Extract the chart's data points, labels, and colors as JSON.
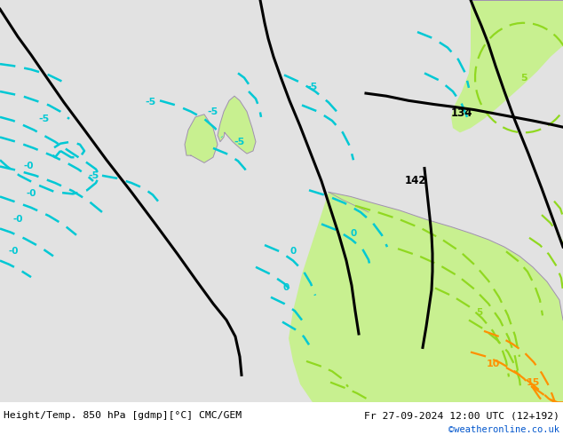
{
  "title_left": "Height/Temp. 850 hPa [gdmp][°C] CMC/GEM",
  "title_right": "Fr 27-09-2024 12:00 UTC (12+192)",
  "watermark": "©weatheronline.co.uk",
  "bg_color": "#e2e2e2",
  "green_color": "#c8f090",
  "cyan_color": "#00c8d4",
  "green_contour": "#90d820",
  "orange_color": "#ff9000",
  "black_color": "#000000",
  "coast_color": "#a090b0",
  "fig_width": 6.34,
  "fig_height": 4.9,
  "dpi": 100
}
